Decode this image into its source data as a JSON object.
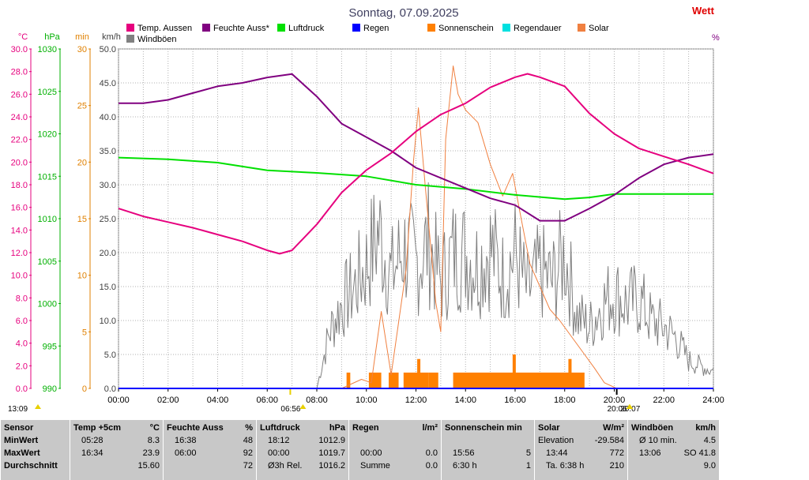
{
  "title": "Sonntag, 07.09.2025",
  "corner_text": "Wett",
  "corner_pct": "%",
  "axes": {
    "temp": {
      "unit": "°C",
      "color": "#e6007e",
      "ticks": [
        "0.0",
        "2.0",
        "4.0",
        "6.0",
        "8.0",
        "10.0",
        "12.0",
        "14.0",
        "16.0",
        "18.0",
        "20.0",
        "22.0",
        "24.0",
        "26.0",
        "28.0",
        "30.0"
      ],
      "range": [
        0,
        30
      ]
    },
    "pressure": {
      "unit": "hPa",
      "color": "#00b000",
      "ticks": [
        "990",
        "995",
        "1000",
        "1005",
        "1010",
        "1015",
        "1020",
        "1025",
        "1030"
      ],
      "range": [
        990,
        1030
      ]
    },
    "minutes": {
      "unit": "min",
      "color": "#e08000",
      "ticks": [
        "0",
        "5",
        "10",
        "15",
        "20",
        "25",
        "30"
      ],
      "range": [
        0,
        30
      ]
    },
    "speed": {
      "unit": "km/h",
      "color": "#404040",
      "ticks": [
        "0.0",
        "5.0",
        "10.0",
        "15.0",
        "20.0",
        "25.0",
        "30.0",
        "35.0",
        "40.0",
        "45.0",
        "50.0"
      ],
      "range": [
        0,
        50
      ]
    },
    "x_ticks": [
      "00:00",
      "02:00",
      "04:00",
      "06:00",
      "08:00",
      "10:00",
      "12:00",
      "14:00",
      "16:00",
      "18:00",
      "20:00",
      "22:00",
      "24:00"
    ]
  },
  "legend": [
    {
      "label": "Temp. Aussen",
      "color": "#e6007e"
    },
    {
      "label": "Feuchte Auss*",
      "color": "#800080"
    },
    {
      "label": "Luftdruck",
      "color": "#00e000"
    },
    {
      "label": "Regen",
      "color": "#0000ff"
    },
    {
      "label": "Sonnenschein",
      "color": "#ff8000"
    },
    {
      "label": "Regendauer",
      "color": "#00e0e0"
    },
    {
      "label": "Solar",
      "color": "#f08040"
    },
    {
      "label": "Windböen",
      "color": "#808080"
    }
  ],
  "markers": [
    {
      "label": "13:09",
      "hour": -0.5
    },
    {
      "label": "06:56",
      "hour": 6.93
    },
    {
      "label": "20:06",
      "hour": 20.1
    },
    {
      "label": "20:07",
      "hour": 20.12
    }
  ],
  "chart_data": {
    "type": "line",
    "title": "Sonntag, 07.09.2025",
    "x_unit": "hour of day",
    "xlim": [
      0,
      24
    ],
    "series": [
      {
        "name": "Temp. Aussen",
        "axis": "°C",
        "color": "#e6007e",
        "x": [
          0,
          1,
          2,
          3,
          4,
          5,
          6,
          6.5,
          7,
          8,
          9,
          10,
          11,
          12,
          13,
          14,
          15,
          16,
          16.5,
          17,
          18,
          19,
          20,
          21,
          22,
          23,
          24
        ],
        "y": [
          15.9,
          15.2,
          14.7,
          14.2,
          13.6,
          13.0,
          12.2,
          11.9,
          12.2,
          14.5,
          17.3,
          19.3,
          20.8,
          22.7,
          24.2,
          25.2,
          26.6,
          27.5,
          27.8,
          27.5,
          26.7,
          24.3,
          22.5,
          21.2,
          20.5,
          19.8,
          19.0
        ]
      },
      {
        "name": "Feuchte Auss*",
        "axis": "%",
        "color": "#800080",
        "x": [
          0,
          1,
          2,
          3,
          4,
          5,
          6,
          7,
          8,
          9,
          10,
          11,
          12,
          13,
          14,
          15,
          16,
          17,
          18,
          19,
          20,
          21,
          22,
          23,
          24
        ],
        "y": [
          42.0,
          42.0,
          42.5,
          43.5,
          44.5,
          45.0,
          45.8,
          46.3,
          43.0,
          39.0,
          37.0,
          35.0,
          32.5,
          31.0,
          29.5,
          28.0,
          27.0,
          24.7,
          24.7,
          26.5,
          28.5,
          31.0,
          33.0,
          34.0,
          34.5
        ],
        "y_axis_scale": "plotted on km/h scale"
      },
      {
        "name": "Luftdruck",
        "axis": "hPa",
        "color": "#00e000",
        "x": [
          0,
          2,
          4,
          6,
          8,
          10,
          12,
          14,
          16,
          18,
          19,
          20,
          22,
          24
        ],
        "y": [
          1017.2,
          1017.0,
          1016.6,
          1015.7,
          1015.4,
          1015.0,
          1014.0,
          1013.5,
          1012.8,
          1012.3,
          1012.5,
          1012.9,
          1012.9,
          1012.9
        ]
      },
      {
        "name": "Regen",
        "axis": "l/m²",
        "color": "#0000ff",
        "x": [
          0,
          24
        ],
        "y": [
          0,
          0
        ]
      },
      {
        "name": "Solar",
        "axis": "W/m²",
        "color": "#f08040",
        "x": [
          0,
          9,
          9.8,
          10.2,
          10.6,
          11,
          11.6,
          11.9,
          12.1,
          12.4,
          12.8,
          13.0,
          13.2,
          13.5,
          13.7,
          14.0,
          14.5,
          15.0,
          15.5,
          15.9,
          16.2,
          16.6,
          17.0,
          17.4,
          17.8,
          18.3,
          18.8,
          19.2,
          19.6,
          20.1,
          24
        ],
        "y": [
          0,
          0,
          0.8,
          0.5,
          6.8,
          1.2,
          10.5,
          20.1,
          24.8,
          17.3,
          7.6,
          5.0,
          22.0,
          28.5,
          26.0,
          24.6,
          23.5,
          19.8,
          17.0,
          19.0,
          15.5,
          11.0,
          9.0,
          7.0,
          6.0,
          4.5,
          3.0,
          1.8,
          0.5,
          0,
          0
        ]
      },
      {
        "name": "Sonnenschein",
        "axis": "min",
        "color": "#ff8000",
        "type": "bar",
        "x": [
          9.2,
          10.2,
          10.7,
          11.5,
          11.9,
          12.5,
          12.8,
          13.5,
          14,
          15,
          15.9,
          16.5,
          17,
          17.5,
          18.2,
          18.8
        ],
        "y": [
          2,
          1,
          0,
          2,
          2,
          2,
          1,
          2,
          2,
          2,
          3,
          2,
          2,
          2,
          3,
          2
        ]
      },
      {
        "name": "Windböen",
        "axis": "km/h",
        "color": "#808080",
        "x": [
          0,
          8,
          8.5,
          9,
          9.5,
          10,
          10.5,
          11,
          11.5,
          12,
          12.5,
          13,
          13.5,
          14,
          14.5,
          15,
          15.5,
          16,
          16.5,
          17,
          17.5,
          18,
          18.5,
          19,
          19.5,
          20,
          20.5,
          21,
          21.5,
          22,
          22.5,
          23,
          23.5,
          24
        ],
        "y": [
          0,
          0,
          10,
          15,
          18,
          22,
          28,
          20,
          25,
          22,
          26,
          19,
          24,
          24,
          22,
          25,
          20,
          24,
          17,
          21,
          19,
          24,
          13,
          11,
          15,
          17,
          15,
          16,
          12,
          11,
          9,
          5,
          4,
          3
        ]
      }
    ]
  },
  "stats": {
    "cols": [
      {
        "header": "Sensor",
        "header_unit": "",
        "rows": [
          {
            "label": "MinWert",
            "time": "",
            "value": ""
          },
          {
            "label": "MaxWert",
            "time": "",
            "value": ""
          },
          {
            "label": "Durchschnitt",
            "time": "",
            "value": ""
          }
        ]
      },
      {
        "header": "Temp +5cm",
        "header_unit": "°C",
        "rows": [
          {
            "label": "",
            "time": "05:28",
            "value": "8.3"
          },
          {
            "label": "",
            "time": "16:34",
            "value": "23.9"
          },
          {
            "label": "",
            "time": "",
            "value": "15.60"
          }
        ]
      },
      {
        "header": "Feuchte Auss",
        "header_unit": "%",
        "rows": [
          {
            "label": "",
            "time": "16:38",
            "value": "48"
          },
          {
            "label": "",
            "time": "06:00",
            "value": "92"
          },
          {
            "label": "",
            "time": "",
            "value": "72"
          }
        ]
      },
      {
        "header": "Luftdruck",
        "header_unit": "hPa",
        "rows": [
          {
            "label": "",
            "time": "18:12",
            "value": "1012.9"
          },
          {
            "label": "",
            "time": "00:00",
            "value": "1019.7"
          },
          {
            "label": "",
            "time": "Ø3h Rel.",
            "value": "1016.2"
          }
        ]
      },
      {
        "header": "Regen",
        "header_unit": "l/m²",
        "rows": [
          {
            "label": "",
            "time": "",
            "value": ""
          },
          {
            "label": "",
            "time": "00:00",
            "value": "0.0"
          },
          {
            "label": "",
            "time": "Summe",
            "value": "0.0"
          }
        ]
      },
      {
        "header": "Sonnenschein min",
        "header_unit": "",
        "rows": [
          {
            "label": "",
            "time": "",
            "value": ""
          },
          {
            "label": "",
            "time": "15:56",
            "value": "5"
          },
          {
            "label": "",
            "time": "6:30 h",
            "value": "1"
          }
        ]
      },
      {
        "header": "Solar",
        "header_unit": "W/m²",
        "rows": [
          {
            "label": "Elevation",
            "time": "",
            "value": "-29.584"
          },
          {
            "label": "",
            "time": "13:44",
            "value": "772"
          },
          {
            "label": "",
            "time": "Ta. 6:38 h",
            "value": "210"
          }
        ]
      },
      {
        "header": "Windböen",
        "header_unit": "km/h",
        "rows": [
          {
            "label": "",
            "time": "Ø 10 min.",
            "value": "4.5"
          },
          {
            "label": "",
            "time": "13:06",
            "value": "SO 41.8"
          },
          {
            "label": "",
            "time": "",
            "value": "9.0"
          }
        ]
      }
    ]
  }
}
